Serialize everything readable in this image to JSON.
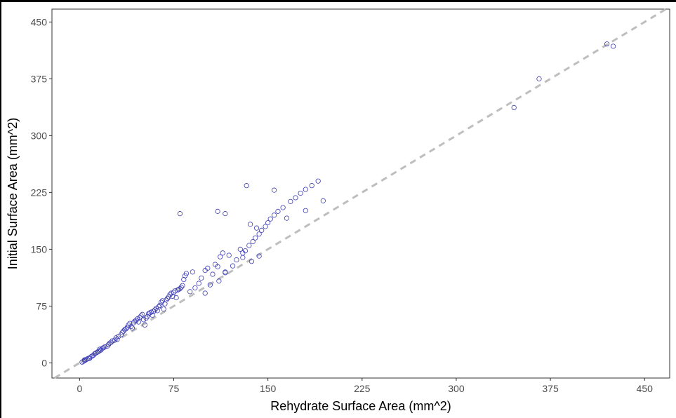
{
  "chart_data": {
    "type": "scatter",
    "title": "",
    "xlabel": "Rehydrate Surface Area (mm^2)",
    "ylabel": "Initial Surface Area (mm^2)",
    "xlim": [
      -22,
      470
    ],
    "ylim": [
      -20,
      467
    ],
    "x_ticks": [
      0,
      75,
      150,
      225,
      300,
      375,
      450
    ],
    "y_ticks": [
      0,
      75,
      150,
      225,
      300,
      375,
      450
    ],
    "x_tick_labels": [
      "0",
      "75",
      "150",
      "225",
      "300",
      "375",
      "450"
    ],
    "y_tick_labels": [
      "0",
      "75",
      "150",
      "225",
      "300",
      "375",
      "450"
    ],
    "grid": false,
    "reference_line": {
      "type": "identity",
      "slope": 1,
      "intercept": 0,
      "style": "dashed",
      "color": "#bebebe"
    },
    "point_color": "#3b3bb3",
    "marker": "hollow-circle",
    "series": [
      {
        "points": [
          [
            2,
            1
          ],
          [
            3,
            2
          ],
          [
            4,
            3
          ],
          [
            5,
            4
          ],
          [
            4,
            4
          ],
          [
            6,
            5
          ],
          [
            7,
            6
          ],
          [
            8,
            6
          ],
          [
            9,
            8
          ],
          [
            10,
            9
          ],
          [
            11,
            10
          ],
          [
            12,
            12
          ],
          [
            13,
            13
          ],
          [
            14,
            14
          ],
          [
            15,
            15
          ],
          [
            16,
            16
          ],
          [
            16,
            18
          ],
          [
            17,
            17
          ],
          [
            18,
            19
          ],
          [
            19,
            20
          ],
          [
            20,
            21
          ],
          [
            22,
            22
          ],
          [
            23,
            24
          ],
          [
            24,
            26
          ],
          [
            25,
            27
          ],
          [
            26,
            29
          ],
          [
            28,
            30
          ],
          [
            29,
            33
          ],
          [
            30,
            31
          ],
          [
            31,
            35
          ],
          [
            33,
            37
          ],
          [
            34,
            40
          ],
          [
            35,
            42
          ],
          [
            36,
            44
          ],
          [
            37,
            45
          ],
          [
            38,
            47
          ],
          [
            39,
            50
          ],
          [
            40,
            52
          ],
          [
            41,
            48
          ],
          [
            42,
            46
          ],
          [
            43,
            53
          ],
          [
            44,
            55
          ],
          [
            45,
            56
          ],
          [
            46,
            58
          ],
          [
            47,
            54
          ],
          [
            48,
            60
          ],
          [
            49,
            62
          ],
          [
            50,
            64
          ],
          [
            51,
            57
          ],
          [
            52,
            50
          ],
          [
            53,
            59
          ],
          [
            54,
            61
          ],
          [
            55,
            65
          ],
          [
            56,
            66
          ],
          [
            57,
            67
          ],
          [
            58,
            63
          ],
          [
            59,
            68
          ],
          [
            60,
            70
          ],
          [
            61,
            72
          ],
          [
            62,
            69
          ],
          [
            63,
            74
          ],
          [
            64,
            76
          ],
          [
            65,
            80
          ],
          [
            66,
            82
          ],
          [
            67,
            71
          ],
          [
            68,
            78
          ],
          [
            69,
            83
          ],
          [
            70,
            85
          ],
          [
            71,
            87
          ],
          [
            72,
            90
          ],
          [
            73,
            92
          ],
          [
            74,
            88
          ],
          [
            75,
            93
          ],
          [
            76,
            95
          ],
          [
            77,
            86
          ],
          [
            78,
            96
          ],
          [
            79,
            97
          ],
          [
            80,
            98
          ],
          [
            81,
            100
          ],
          [
            82,
            102
          ],
          [
            83,
            110
          ],
          [
            84,
            115
          ],
          [
            85,
            118
          ],
          [
            88,
            94
          ],
          [
            90,
            120
          ],
          [
            92,
            99
          ],
          [
            95,
            105
          ],
          [
            97,
            112
          ],
          [
            100,
            122
          ],
          [
            102,
            125
          ],
          [
            104,
            103
          ],
          [
            106,
            117
          ],
          [
            108,
            130
          ],
          [
            110,
            127
          ],
          [
            112,
            140
          ],
          [
            114,
            145
          ],
          [
            116,
            119
          ],
          [
            119,
            142
          ],
          [
            122,
            128
          ],
          [
            125,
            136
          ],
          [
            128,
            150
          ],
          [
            130,
            139
          ],
          [
            132,
            148
          ],
          [
            135,
            155
          ],
          [
            138,
            160
          ],
          [
            140,
            165
          ],
          [
            143,
            170
          ],
          [
            145,
            175
          ],
          [
            148,
            180
          ],
          [
            150,
            185
          ],
          [
            152,
            190
          ],
          [
            155,
            195
          ],
          [
            158,
            200
          ],
          [
            162,
            205
          ],
          [
            168,
            213
          ],
          [
            172,
            218
          ],
          [
            176,
            224
          ],
          [
            180,
            229
          ],
          [
            185,
            234
          ],
          [
            190,
            240
          ],
          [
            110,
            200
          ],
          [
            116,
            197
          ],
          [
            80,
            197
          ],
          [
            136,
            183
          ],
          [
            141,
            178
          ],
          [
            133,
            234
          ],
          [
            155,
            228
          ],
          [
            165,
            191
          ],
          [
            180,
            201
          ],
          [
            194,
            214
          ],
          [
            130,
            145
          ],
          [
            137,
            134
          ],
          [
            143,
            141
          ],
          [
            116,
            120
          ],
          [
            100,
            92
          ],
          [
            111,
            108
          ],
          [
            346,
            337
          ],
          [
            366,
            375
          ],
          [
            420,
            421
          ],
          [
            425,
            418
          ]
        ]
      }
    ]
  }
}
